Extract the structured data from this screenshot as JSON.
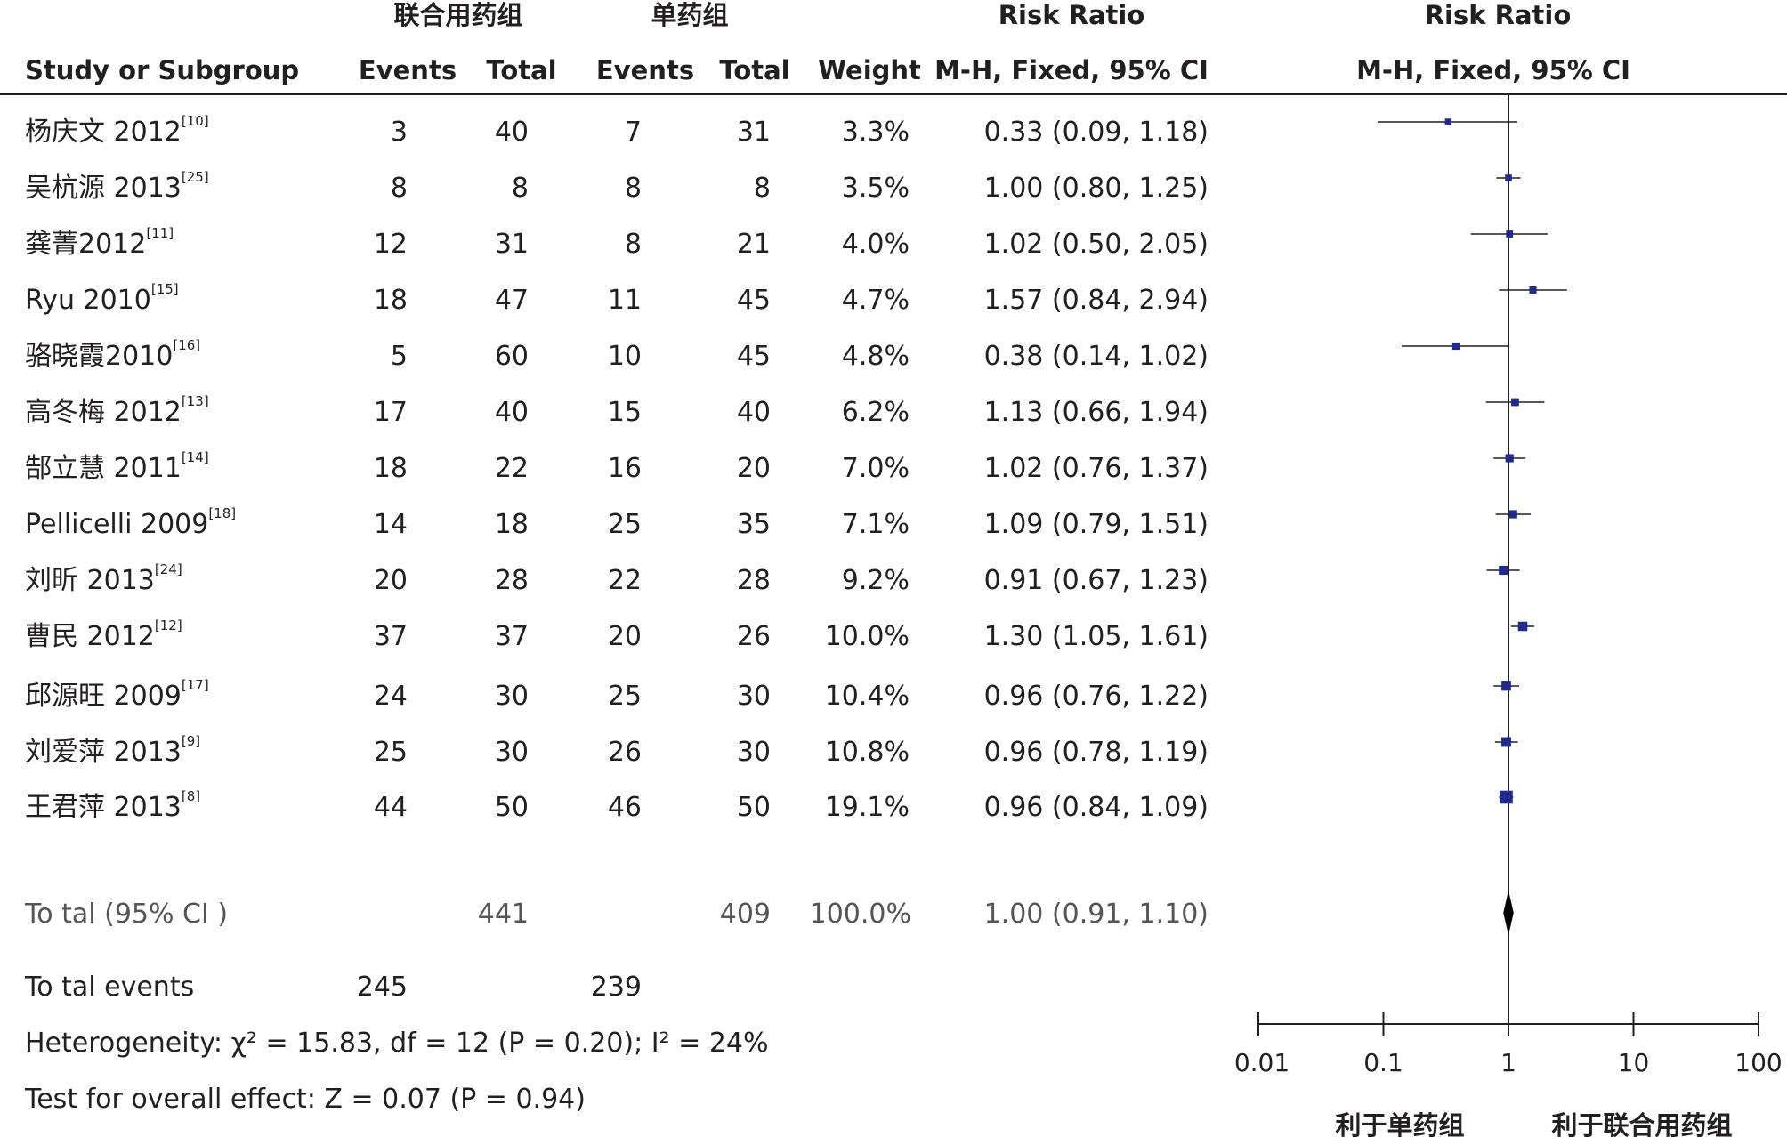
{
  "chart_data": {
    "type": "forest",
    "headers": {
      "group_treatment": "联合用药组",
      "group_control": "单药组",
      "study": "Study or Subgroup",
      "events_treatment": "Events",
      "total_treatment": "Total",
      "events_control": "Events",
      "total_control": "Total",
      "weight": "Weight",
      "rr_title": "Risk Ratio",
      "rr_method": "M-H, Fixed, 95% CI",
      "plot_title": "Risk Ratio",
      "plot_method": "M-H, Fixed, 95% CI"
    },
    "studies": [
      {
        "name": "杨庆文 2012",
        "ref": "[10]",
        "events_t": "3",
        "total_t": "40",
        "events_c": "7",
        "total_c": "31",
        "weight": "3.3%",
        "rr_text": "0.33 (0.09, 1.18)",
        "rr": 0.33,
        "lo": 0.09,
        "hi": 1.18,
        "w": 3.3
      },
      {
        "name": "吴杭源 2013",
        "ref": "[25]",
        "events_t": "8",
        "total_t": "8",
        "events_c": "8",
        "total_c": "8",
        "weight": "3.5%",
        "rr_text": "1.00 (0.80, 1.25)",
        "rr": 1.0,
        "lo": 0.8,
        "hi": 1.25,
        "w": 3.5
      },
      {
        "name": "龚菁2012",
        "ref": "[11]",
        "events_t": "12",
        "total_t": "31",
        "events_c": "8",
        "total_c": "21",
        "weight": "4.0%",
        "rr_text": "1.02 (0.50, 2.05)",
        "rr": 1.02,
        "lo": 0.5,
        "hi": 2.05,
        "w": 4.0
      },
      {
        "name": "Ryu 2010",
        "ref": "[15]",
        "events_t": "18",
        "total_t": "47",
        "events_c": "11",
        "total_c": "45",
        "weight": "4.7%",
        "rr_text": "1.57 (0.84, 2.94)",
        "rr": 1.57,
        "lo": 0.84,
        "hi": 2.94,
        "w": 4.7
      },
      {
        "name": "骆晓霞2010",
        "ref": "[16]",
        "events_t": "5",
        "total_t": "60",
        "events_c": "10",
        "total_c": "45",
        "weight": "4.8%",
        "rr_text": "0.38 (0.14, 1.02)",
        "rr": 0.38,
        "lo": 0.14,
        "hi": 1.02,
        "w": 4.8
      },
      {
        "name": "高冬梅 2012",
        "ref": "[13]",
        "events_t": "17",
        "total_t": "40",
        "events_c": "15",
        "total_c": "40",
        "weight": "6.2%",
        "rr_text": "1.13 (0.66, 1.94)",
        "rr": 1.13,
        "lo": 0.66,
        "hi": 1.94,
        "w": 6.2
      },
      {
        "name": "郜立慧 2011",
        "ref": "[14]",
        "events_t": "18",
        "total_t": "22",
        "events_c": "16",
        "total_c": "20",
        "weight": "7.0%",
        "rr_text": "1.02 (0.76, 1.37)",
        "rr": 1.02,
        "lo": 0.76,
        "hi": 1.37,
        "w": 7.0
      },
      {
        "name": "Pellicelli 2009",
        "ref": "[18]",
        "events_t": "14",
        "total_t": "18",
        "events_c": "25",
        "total_c": "35",
        "weight": "7.1%",
        "rr_text": "1.09 (0.79, 1.51)",
        "rr": 1.09,
        "lo": 0.79,
        "hi": 1.51,
        "w": 7.1
      },
      {
        "name": "刘昕 2013",
        "ref": "[24]",
        "events_t": "20",
        "total_t": "28",
        "events_c": "22",
        "total_c": "28",
        "weight": "9.2%",
        "rr_text": "0.91 (0.67, 1.23)",
        "rr": 0.91,
        "lo": 0.67,
        "hi": 1.23,
        "w": 9.2
      },
      {
        "name": "曹民 2012",
        "ref": "[12]",
        "events_t": "37",
        "total_t": "37",
        "events_c": "20",
        "total_c": "26",
        "weight": "10.0%",
        "rr_text": "1.30 (1.05, 1.61)",
        "rr": 1.3,
        "lo": 1.05,
        "hi": 1.61,
        "w": 10.0
      },
      {
        "name": "邱源旺 2009",
        "ref": "[17]",
        "events_t": "24",
        "total_t": "30",
        "events_c": "25",
        "total_c": "30",
        "weight": "10.4%",
        "rr_text": "0.96 (0.76, 1.22)",
        "rr": 0.96,
        "lo": 0.76,
        "hi": 1.22,
        "w": 10.4
      },
      {
        "name": "刘爱萍 2013",
        "ref": "[9]",
        "events_t": "25",
        "total_t": "30",
        "events_c": "26",
        "total_c": "30",
        "weight": "10.8%",
        "rr_text": "0.96 (0.78, 1.19)",
        "rr": 0.96,
        "lo": 0.78,
        "hi": 1.19,
        "w": 10.8
      },
      {
        "name": "王君萍 2013",
        "ref": "[8]",
        "events_t": "44",
        "total_t": "50",
        "events_c": "46",
        "total_c": "50",
        "weight": "19.1%",
        "rr_text": "0.96 (0.84, 1.09)",
        "rr": 0.96,
        "lo": 0.84,
        "hi": 1.09,
        "w": 19.1
      }
    ],
    "total": {
      "label": "To tal (95% CI )",
      "total_t": "441",
      "total_c": "409",
      "weight": "100.0%",
      "rr_text": "1.00 (0.91, 1.10)",
      "rr": 1.0,
      "lo": 0.91,
      "hi": 1.1
    },
    "total_events": {
      "label": "To tal events",
      "events_t": "245",
      "events_c": "239"
    },
    "heterogeneity": "Heterogeneity: χ² = 15.83, df = 12 (P = 0.20); I² = 24%",
    "overall_effect": "Test for overall effect: Z = 0.07 (P = 0.94)",
    "x_axis": {
      "scale": "log",
      "ticks": [
        0.01,
        0.1,
        1,
        10,
        100
      ],
      "tick_labels": [
        "0.01",
        "0.1",
        "1",
        "10",
        "100"
      ],
      "range": [
        0.01,
        100
      ],
      "favours_left": "利于单药组",
      "favours_right": "利于联合用药组"
    },
    "colors": {
      "marker": "#1f2a8c",
      "line": "#231f20"
    }
  }
}
